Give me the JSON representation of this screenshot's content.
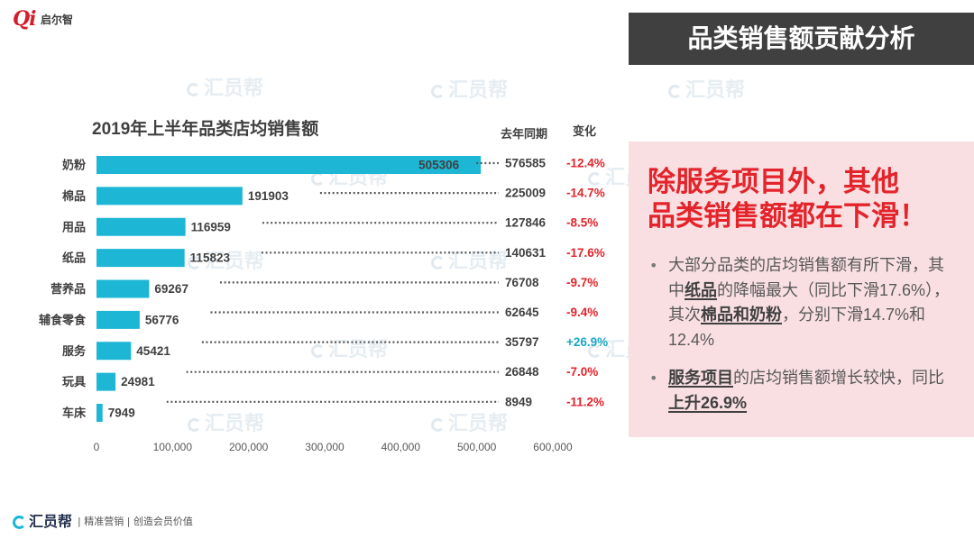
{
  "brand": {
    "mark": "Qi",
    "name": "启尔智"
  },
  "banner": {
    "title": "品类销售额贡献分析"
  },
  "watermark": {
    "text": "汇员帮"
  },
  "chart_data": {
    "type": "bar",
    "orientation": "horizontal",
    "title": "2019年上半年品类店均销售额",
    "categories": [
      "奶粉",
      "棉品",
      "用品",
      "纸品",
      "营养品",
      "辅食零食",
      "服务",
      "玩具",
      "车床"
    ],
    "values": [
      505306,
      191903,
      116959,
      115823,
      69267,
      56776,
      45421,
      24981,
      7949
    ],
    "last_year_header": "去年同期",
    "last_year_values": [
      576585,
      225009,
      127846,
      140631,
      76708,
      62645,
      35797,
      26848,
      8949
    ],
    "change_header": "变化",
    "changes": [
      "-12.4%",
      "-14.7%",
      "-8.5%",
      "-17.6%",
      "-9.7%",
      "-9.4%",
      "+26.9%",
      "-7.0%",
      "-11.2%"
    ],
    "xlim": [
      0,
      600000
    ],
    "x_ticks": [
      0,
      100000,
      200000,
      300000,
      400000,
      500000,
      600000
    ],
    "x_tick_labels": [
      "0",
      "100,000",
      "200,000",
      "300,000",
      "400,000",
      "500,000",
      "600,000"
    ],
    "grid": false,
    "legend": "none",
    "colors": {
      "bar": "#1db6d5",
      "decrease": "#e3242b",
      "increase": "#1aa7c2"
    }
  },
  "panel": {
    "headline": [
      "除服务项目外，其他",
      "品类销售额都在下滑！"
    ],
    "bullets": [
      {
        "lines": [
          [
            "大部分品类的店均销售额有所下滑，其"
          ],
          [
            "中",
            "纸品",
            "的降幅最大（同比下滑17.6%），"
          ],
          [
            "其次",
            "棉品和奶粉",
            "，分别下滑14.7%和"
          ],
          [
            "12.4%"
          ]
        ]
      },
      {
        "lines": [
          [
            "服务项目",
            "的店均销售额增长较快，同比"
          ],
          [
            "上升26.9%"
          ]
        ]
      }
    ]
  },
  "footer": {
    "brand": "汇员帮",
    "tagline": "| 精准营销 | 创造会员价值"
  }
}
